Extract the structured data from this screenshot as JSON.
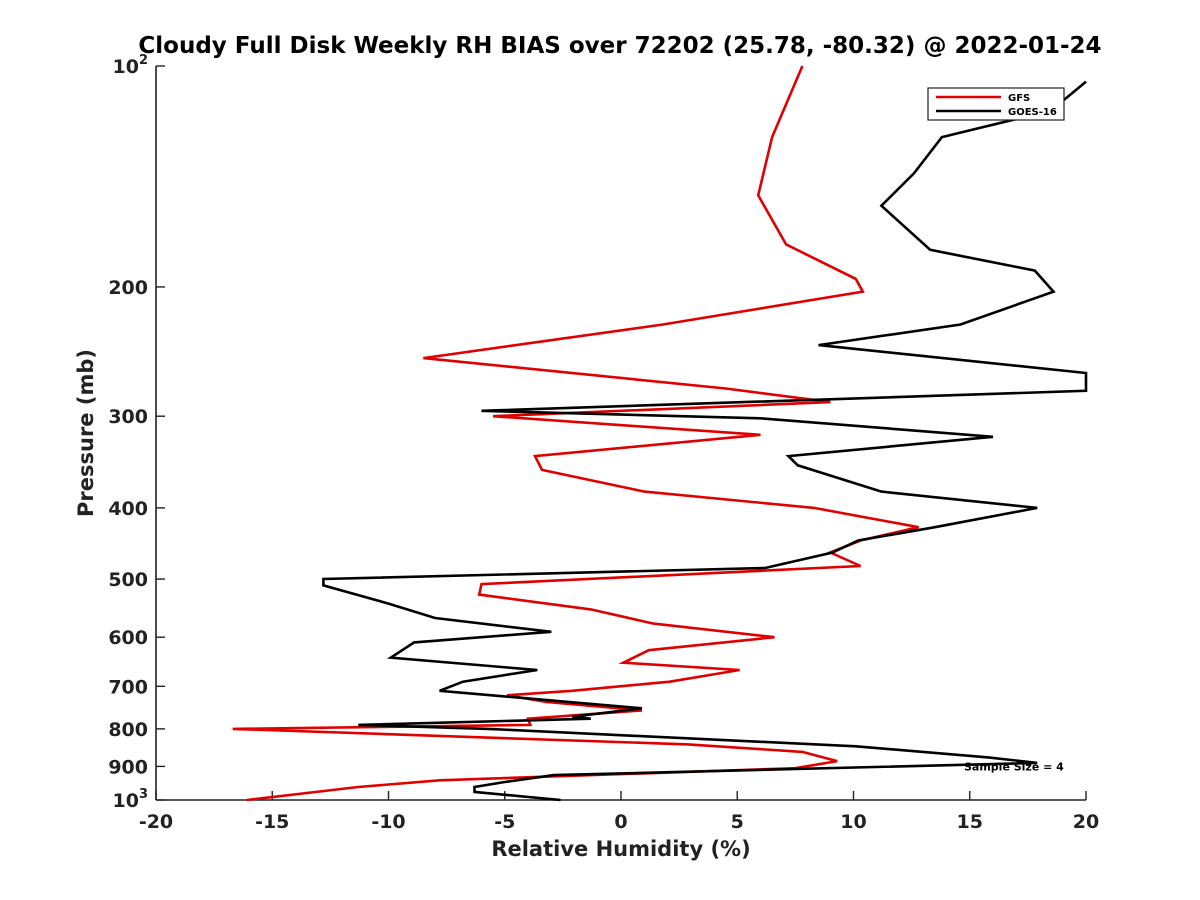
{
  "chart_data": {
    "type": "line",
    "title": "Cloudy Full Disk Weekly RH BIAS over 72202 (25.78, -80.32) @ 2022-01-24",
    "xlabel": "Relative Humidity (%)",
    "ylabel": "Pressure (mb)",
    "xlim": [
      -20,
      20
    ],
    "ylim": [
      1000,
      100
    ],
    "yscale": "log",
    "y_reversed": true,
    "grid": false,
    "legend_position": "top-right",
    "x_ticks": [
      -20,
      -15,
      -10,
      -5,
      0,
      5,
      10,
      15,
      20
    ],
    "x_tick_labels": [
      "-20",
      "-15",
      "-10",
      "-5",
      "0",
      "5",
      "10",
      "15",
      "20"
    ],
    "y_ticks": [
      {
        "value": 100,
        "base": "10",
        "exp": "2"
      },
      {
        "value": 200,
        "label": "200"
      },
      {
        "value": 300,
        "label": "300"
      },
      {
        "value": 400,
        "label": "400"
      },
      {
        "value": 500,
        "label": "500"
      },
      {
        "value": 600,
        "label": "600"
      },
      {
        "value": 700,
        "label": "700"
      },
      {
        "value": 800,
        "label": "800"
      },
      {
        "value": 900,
        "label": "900"
      },
      {
        "value": 1000,
        "base": "10",
        "exp": "3"
      }
    ],
    "series": [
      {
        "name": "GFS",
        "color": "#e00000",
        "points": [
          [
            7.8,
            100
          ],
          [
            6.5,
            125
          ],
          [
            5.9,
            150
          ],
          [
            7.1,
            175
          ],
          [
            10.1,
            195
          ],
          [
            10.4,
            203
          ],
          [
            1.8,
            225
          ],
          [
            -8.5,
            250
          ],
          [
            4.5,
            275
          ],
          [
            9.0,
            287
          ],
          [
            -5.5,
            300
          ],
          [
            6.0,
            318
          ],
          [
            -3.7,
            340
          ],
          [
            -3.4,
            355
          ],
          [
            1.0,
            380
          ],
          [
            8.3,
            400
          ],
          [
            12.8,
            425
          ],
          [
            10.3,
            443
          ],
          [
            9.0,
            460
          ],
          [
            10.3,
            480
          ],
          [
            -6.0,
            508
          ],
          [
            -6.1,
            525
          ],
          [
            -1.3,
            550
          ],
          [
            1.4,
            575
          ],
          [
            6.6,
            600
          ],
          [
            1.2,
            625
          ],
          [
            0.1,
            650
          ],
          [
            5.1,
            665
          ],
          [
            2.1,
            690
          ],
          [
            -2.1,
            710
          ],
          [
            -4.9,
            720
          ],
          [
            -3.2,
            735
          ],
          [
            0.9,
            755
          ],
          [
            -4.0,
            775
          ],
          [
            -3.9,
            790
          ],
          [
            -16.7,
            800
          ],
          [
            2.9,
            840
          ],
          [
            7.8,
            860
          ],
          [
            9.3,
            885
          ],
          [
            7.5,
            905
          ],
          [
            -7.8,
            940
          ],
          [
            -11.3,
            960
          ],
          [
            -16.1,
            1000
          ]
        ]
      },
      {
        "name": "GOES-16",
        "color": "#000000",
        "points": [
          [
            20.0,
            105
          ],
          [
            18.5,
            115
          ],
          [
            13.8,
            125
          ],
          [
            12.6,
            140
          ],
          [
            11.2,
            155
          ],
          [
            13.3,
            178
          ],
          [
            17.8,
            190
          ],
          [
            18.6,
            203
          ],
          [
            14.6,
            225
          ],
          [
            8.5,
            240
          ],
          [
            20.0,
            262
          ],
          [
            20.0,
            277
          ],
          [
            -6.0,
            295
          ],
          [
            6.0,
            302
          ],
          [
            16.0,
            320
          ],
          [
            7.2,
            340
          ],
          [
            7.6,
            350
          ],
          [
            11.2,
            380
          ],
          [
            17.9,
            400
          ],
          [
            13.5,
            425
          ],
          [
            10.2,
            443
          ],
          [
            9.1,
            460
          ],
          [
            6.2,
            483
          ],
          [
            -12.8,
            500
          ],
          [
            -12.8,
            510
          ],
          [
            -10.0,
            540
          ],
          [
            -8.0,
            565
          ],
          [
            -3.0,
            590
          ],
          [
            -8.9,
            610
          ],
          [
            -9.9,
            640
          ],
          [
            -3.6,
            665
          ],
          [
            -6.8,
            690
          ],
          [
            -7.8,
            710
          ],
          [
            0.9,
            750
          ],
          [
            -2.1,
            770
          ],
          [
            -1.3,
            775
          ],
          [
            -11.3,
            790
          ],
          [
            -5.7,
            800
          ],
          [
            10.1,
            845
          ],
          [
            15.8,
            875
          ],
          [
            17.9,
            890
          ],
          [
            -2.9,
            925
          ],
          [
            -5.0,
            945
          ],
          [
            -6.3,
            960
          ],
          [
            -6.3,
            975
          ],
          [
            -2.6,
            1000
          ]
        ]
      }
    ],
    "annotations": [
      {
        "text": "Sample Size = 4",
        "x": 16.9,
        "y": 900
      }
    ]
  }
}
